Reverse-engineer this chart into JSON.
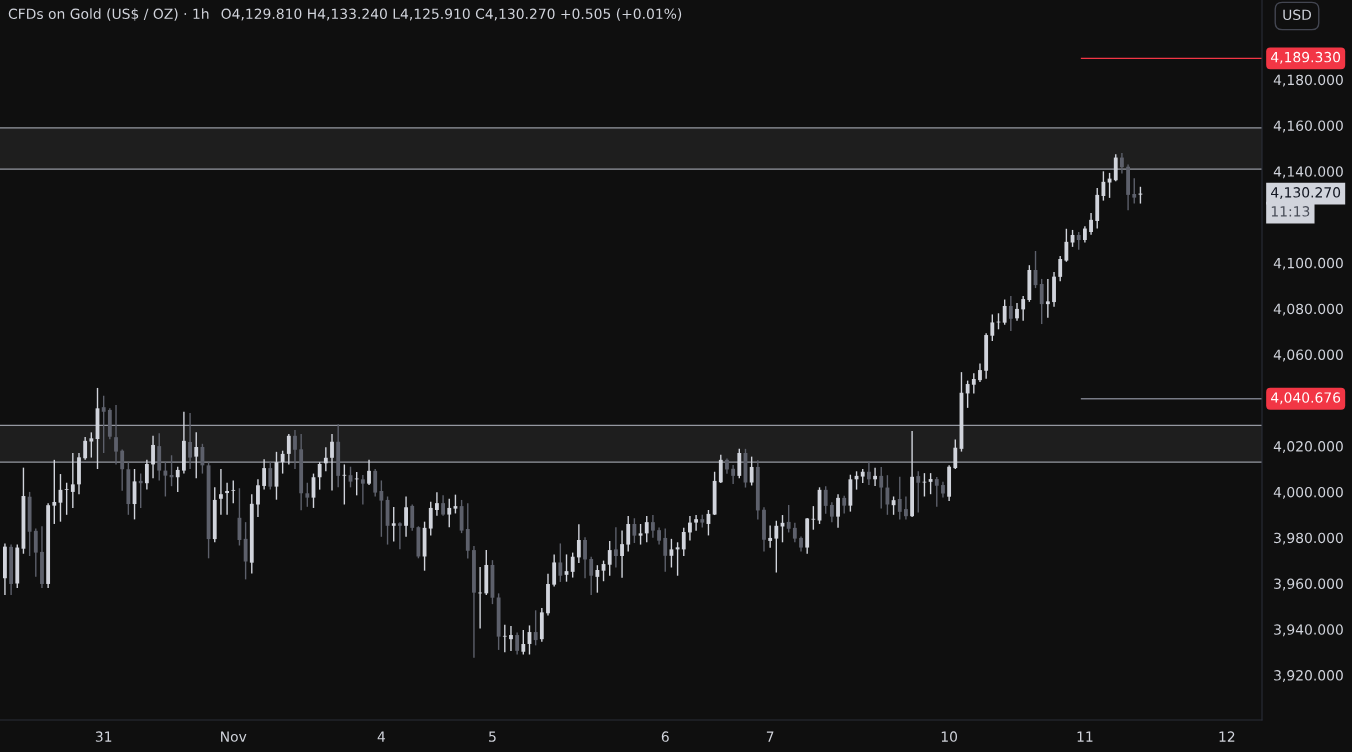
{
  "chart_data": {
    "type": "candlestick",
    "title": "CFDs on Gold (US$ / OZ) · 1h",
    "subtitle": "O4,129.810 H4,133.240 L4,125.910 C4,130.270 +0.505 (+0.01%)",
    "categories": [
      null,
      null,
      null,
      null,
      null,
      null,
      null,
      null,
      null,
      null,
      null,
      null,
      null,
      null,
      null,
      null,
      "31",
      null,
      null,
      null,
      null,
      null,
      null,
      null,
      null,
      null,
      null,
      null,
      null,
      null,
      null,
      null,
      null,
      null,
      null,
      null,
      null,
      "Nov",
      null,
      null,
      null,
      null,
      null,
      null,
      null,
      null,
      null,
      null,
      null,
      null,
      null,
      null,
      null,
      null,
      null,
      null,
      null,
      null,
      null,
      null,
      null,
      "4",
      null,
      null,
      null,
      null,
      null,
      null,
      null,
      null,
      null,
      null,
      null,
      null,
      null,
      null,
      null,
      null,
      null,
      "5",
      null,
      null,
      null,
      null,
      null,
      null,
      null,
      null,
      null,
      null,
      null,
      null,
      null,
      null,
      null,
      null,
      null,
      null,
      null,
      null,
      null,
      null,
      null,
      null,
      null,
      null,
      null,
      "6",
      null,
      null,
      null,
      null,
      null,
      null,
      null,
      null,
      null,
      null,
      null,
      null,
      null,
      null,
      null,
      null,
      "7",
      null,
      null,
      null,
      null,
      null,
      null,
      null,
      null,
      null,
      null,
      null,
      null,
      null,
      null,
      null,
      null,
      null,
      null,
      null,
      null,
      null,
      null,
      null,
      null,
      null,
      null,
      null,
      null,
      "10",
      null,
      null,
      null,
      null,
      null,
      null,
      null,
      null,
      null,
      null,
      null,
      null,
      null,
      null,
      null,
      null,
      null,
      null,
      null,
      null,
      null,
      "11",
      null,
      null,
      null,
      null,
      null,
      null,
      null,
      null,
      null,
      null,
      null,
      null,
      null,
      null,
      null,
      null,
      null,
      null,
      null,
      null,
      null,
      null,
      "12",
      null,
      null,
      null,
      null,
      null
    ],
    "ohlc": [
      [
        3962.3,
        3977.5,
        3955,
        3976.1
      ],
      [
        3976,
        3977,
        3955,
        3959.8
      ],
      [
        3960,
        3977,
        3958,
        3975.7
      ],
      [
        3975.2,
        4010.6,
        3973,
        3998.2
      ],
      [
        3997.9,
        4000,
        3972,
        3982.6
      ],
      [
        3983,
        3984,
        3963,
        3973.5
      ],
      [
        3973.8,
        3985,
        3958,
        3959.8
      ],
      [
        3959.8,
        3995,
        3958,
        3994.2
      ],
      [
        3994,
        4014,
        3986,
        3995.6
      ],
      [
        3995.3,
        4007.8,
        3987,
        4000.9
      ],
      [
        4000.9,
        4004,
        3990,
        4000.9
      ],
      [
        4000,
        4017,
        3993,
        4003.3
      ],
      [
        4003.3,
        4017,
        3999,
        4015.1
      ],
      [
        4014.7,
        4024,
        4014,
        4022.3
      ],
      [
        4022,
        4026,
        4015,
        4023.4
      ],
      [
        4023.1,
        4045.4,
        4010,
        4036.5
      ],
      [
        4037,
        4042,
        4017,
        4035
      ],
      [
        4035.8,
        4036.5,
        4023,
        4024.1
      ],
      [
        4023.9,
        4038,
        4012,
        4017.6
      ],
      [
        4018,
        4018.5,
        4000.5,
        4009.9
      ],
      [
        4009.9,
        4013,
        3990,
        3994.7
      ],
      [
        3994.7,
        4010,
        3988,
        4004.6
      ],
      [
        4004.8,
        4008,
        3993,
        4003.8
      ],
      [
        4003.8,
        4014,
        4001,
        4012.2
      ],
      [
        4012,
        4024.5,
        4006,
        4020.5
      ],
      [
        4020,
        4025.6,
        4005,
        4009.3
      ],
      [
        4009.3,
        4013,
        3998,
        4007.1
      ],
      [
        4007.4,
        4016,
        4002.5,
        4006.4
      ],
      [
        4006.4,
        4011,
        4000,
        4009.6
      ],
      [
        4009.3,
        4035,
        4008,
        4022.3
      ],
      [
        4021.8,
        4034.5,
        4010,
        4015
      ],
      [
        4015.4,
        4026,
        4006,
        4019.6
      ],
      [
        4019.6,
        4021,
        4008,
        4011.6
      ],
      [
        4011.6,
        4013,
        3971,
        3979.4
      ],
      [
        3979.4,
        4002,
        3978,
        3996.5
      ],
      [
        3997,
        4010,
        3990,
        3999
      ],
      [
        3999.5,
        4004,
        3990,
        4000.4
      ],
      [
        4000.5,
        4005,
        3995,
        4000.5
      ],
      [
        3988.7,
        4001.6,
        3976.6,
        3979
      ],
      [
        3979.5,
        3986.8,
        3961.8,
        3969.6
      ],
      [
        3969.1,
        3999,
        3964.4,
        3994.8
      ],
      [
        3994.5,
        4005.5,
        3989,
        4002.9
      ],
      [
        4002.6,
        4014.3,
        4001,
        4010.4
      ],
      [
        4010.4,
        4013,
        4001,
        4002.3
      ],
      [
        4002.3,
        4017.5,
        3996.6,
        4013
      ],
      [
        4013,
        4018,
        4008,
        4016.6
      ],
      [
        4016.6,
        4025.3,
        4012,
        4024.5
      ],
      [
        4024.5,
        4027,
        4010,
        4018.4
      ],
      [
        4018.6,
        4025.3,
        3992,
        3999.4
      ],
      [
        3999.4,
        4004,
        3993.5,
        3997.5
      ],
      [
        3997.5,
        4008,
        3993,
        4006.4
      ],
      [
        4006.4,
        4013,
        4001,
        4012.2
      ],
      [
        4012.5,
        4019.5,
        4009,
        4014.9
      ],
      [
        4014.9,
        4025.3,
        4000.6,
        4021.9
      ],
      [
        4021.9,
        4029.5,
        4002,
        4007
      ],
      [
        4007.1,
        4012,
        3994.5,
        4007.1
      ],
      [
        4007.3,
        4011,
        4002,
        4004.5
      ],
      [
        4005.5,
        4008.7,
        3998.5,
        4005.5
      ],
      [
        4005.5,
        4007.4,
        3994.5,
        4003.6
      ],
      [
        4003.6,
        4014,
        4003,
        4009.2
      ],
      [
        4009.2,
        4010,
        3998,
        3999.7
      ],
      [
        4000.4,
        4005,
        3980.4,
        3996.2
      ],
      [
        3996.5,
        3998,
        3977,
        3985.2
      ],
      [
        3985.2,
        3993.4,
        3978.3,
        3986.3
      ],
      [
        3986.3,
        3986.8,
        3975,
        3985.2
      ],
      [
        3985.2,
        3998,
        3980.4,
        3993.3
      ],
      [
        3993.9,
        3994.5,
        3983,
        3984.3
      ],
      [
        3984.6,
        3985,
        3971,
        3971.8
      ],
      [
        3971.8,
        3987,
        3965.6,
        3984.3
      ],
      [
        3984,
        3995.7,
        3981,
        3993
      ],
      [
        3992.1,
        3999.9,
        3989.6,
        3995.1
      ],
      [
        3995.1,
        3998.5,
        3989.6,
        3990.1
      ],
      [
        3990.1,
        3997,
        3984.6,
        3993
      ],
      [
        3992.7,
        3998.8,
        3990.6,
        3993.8
      ],
      [
        3993.8,
        3996.5,
        3982,
        3983.1
      ],
      [
        3983.8,
        3995,
        3970.9,
        3974.3
      ],
      [
        3974.6,
        3976.4,
        3927.6,
        3956
      ],
      [
        3955.7,
        3967.2,
        3940.4,
        3955.7
      ],
      [
        3955.7,
        3974.6,
        3955,
        3968.1
      ],
      [
        3968.1,
        3970.2,
        3951,
        3953.8
      ],
      [
        3953.9,
        3955.7,
        3931,
        3936.8
      ],
      [
        3936.8,
        3942,
        3930,
        3936.8
      ],
      [
        3935.7,
        3941.5,
        3930.5,
        3937.5
      ],
      [
        3937.5,
        3938.6,
        3929,
        3930.6
      ],
      [
        3930.2,
        3939.7,
        3929,
        3933.6
      ],
      [
        3933.6,
        3941.7,
        3929,
        3938.8
      ],
      [
        3938.8,
        3948.3,
        3933,
        3935.3
      ],
      [
        3935.7,
        3949.3,
        3934.6,
        3947.4
      ],
      [
        3947,
        3964.3,
        3946,
        3959.8
      ],
      [
        3959.5,
        3972.7,
        3958.7,
        3969.2
      ],
      [
        3969.2,
        3977.5,
        3960.7,
        3963.4
      ],
      [
        3963.8,
        3972.7,
        3960.8,
        3965.4
      ],
      [
        3965.1,
        3973.5,
        3962.6,
        3971.7
      ],
      [
        3971.4,
        3985.9,
        3969,
        3979
      ],
      [
        3979,
        3980.2,
        3962.3,
        3970.5
      ],
      [
        3970.7,
        3971.7,
        3955,
        3963.4
      ],
      [
        3962.9,
        3968,
        3956,
        3965.9
      ],
      [
        3965.6,
        3970,
        3961,
        3968.5
      ],
      [
        3968.2,
        3978.6,
        3963.4,
        3974.6
      ],
      [
        3974.9,
        3984.6,
        3967,
        3972
      ],
      [
        3972,
        3983.2,
        3962.5,
        3977.2
      ],
      [
        3977,
        3989.5,
        3974,
        3986
      ],
      [
        3986,
        3988.5,
        3977.7,
        3980.9
      ],
      [
        3980.9,
        3986,
        3977,
        3981.9
      ],
      [
        3981.9,
        3989.5,
        3978,
        3986.8
      ],
      [
        3986.8,
        3989.9,
        3980,
        3983.1
      ],
      [
        3983.3,
        3984.5,
        3977,
        3978.7
      ],
      [
        3979.9,
        3984,
        3965.1,
        3972.1
      ],
      [
        3972.1,
        3979.5,
        3967,
        3974.9
      ],
      [
        3974.9,
        3978,
        3963.4,
        3975.8
      ],
      [
        3974.9,
        3984.3,
        3972,
        3982.5
      ],
      [
        3982.3,
        3989.5,
        3978.8,
        3986.6
      ],
      [
        3986.6,
        3989.9,
        3983,
        3988.1
      ],
      [
        3988.1,
        3990,
        3984.5,
        3986.6
      ],
      [
        3986,
        3992.1,
        3981,
        3990.4
      ],
      [
        3990.1,
        4008.8,
        3989.9,
        4004.8
      ],
      [
        4004.2,
        4016.2,
        4003.9,
        4014
      ],
      [
        4014,
        4014.6,
        4007.9,
        4009.8
      ],
      [
        4010.1,
        4011.8,
        4003.5,
        4007
      ],
      [
        4007,
        4018.8,
        4006,
        4017
      ],
      [
        4017,
        4018.8,
        4001.9,
        4004.1
      ],
      [
        4004.1,
        4015.4,
        4002.8,
        4010.9
      ],
      [
        4010.9,
        4013.8,
        3988,
        3991.9
      ],
      [
        3992.2,
        3993.3,
        3974,
        3979.1
      ],
      [
        3978.6,
        3985.3,
        3975.6,
        3979.9
      ],
      [
        3979.6,
        3987.4,
        3964.8,
        3985.2
      ],
      [
        3984.9,
        3989.9,
        3978,
        3986.5
      ],
      [
        3986.9,
        3994.3,
        3982.3,
        3983.9
      ],
      [
        3984.3,
        3986.5,
        3978,
        3979.6
      ],
      [
        3979.9,
        3980.5,
        3974,
        3975.7
      ],
      [
        3975.7,
        3988.6,
        3973,
        3988.4
      ],
      [
        3987.9,
        3993.8,
        3983.5,
        3987.9
      ],
      [
        3987.5,
        4002,
        3986,
        4000.9
      ],
      [
        4000.9,
        4002.5,
        3990.5,
        3993.9
      ],
      [
        3994.3,
        3995.5,
        3986.8,
        3989.2
      ],
      [
        3989.2,
        3999,
        3984.3,
        3997.4
      ],
      [
        3997.4,
        3998.3,
        3990.6,
        3994
      ],
      [
        3994,
        4007.5,
        3991.4,
        4005.5
      ],
      [
        4005.5,
        4009,
        4001,
        4007
      ],
      [
        4006.7,
        4010,
        4003.9,
        4008.8
      ],
      [
        4008.8,
        4013.3,
        4003,
        4005.5
      ],
      [
        4005.5,
        4010.5,
        4002.6,
        4007
      ],
      [
        4007,
        4010.9,
        3992.8,
        4001.9
      ],
      [
        4001.9,
        4007.3,
        3990,
        3994.5
      ],
      [
        3994.2,
        3998,
        3990,
        3996.4
      ],
      [
        3996.9,
        4006.6,
        3987.9,
        3991.3
      ],
      [
        3992.5,
        3998,
        3988,
        3989.4
      ],
      [
        3989.4,
        4026.6,
        3989,
        4006.6
      ],
      [
        4006.9,
        4009,
        3991,
        4004
      ],
      [
        4004.1,
        4008.2,
        3998,
        4004.1
      ],
      [
        4004.4,
        4008.2,
        3999,
        4005.6
      ],
      [
        4005.6,
        4006.5,
        3993.5,
        4002.7
      ],
      [
        4003,
        4004.4,
        3997.6,
        3999.3
      ],
      [
        3997.9,
        4011.6,
        3996,
        4011
      ],
      [
        4010.4,
        4022.9,
        4010,
        4019.3
      ],
      [
        4018.8,
        4052.3,
        4017.6,
        4043.3
      ],
      [
        4043,
        4048.6,
        4036.7,
        4047.1
      ],
      [
        4046.8,
        4051.8,
        4043,
        4049.3
      ],
      [
        4048.8,
        4056.1,
        4048,
        4053.2
      ],
      [
        4052.9,
        4069.3,
        4049.4,
        4068.5
      ],
      [
        4068.2,
        4077.5,
        4065.9,
        4074
      ],
      [
        4074,
        4078,
        4071,
        4074
      ],
      [
        4073.9,
        4084,
        4073,
        4081.2
      ],
      [
        4081.2,
        4085.6,
        4070.3,
        4075.6
      ],
      [
        4075.8,
        4082.5,
        4074.7,
        4079.9
      ],
      [
        4079.7,
        4085.6,
        4074.7,
        4084.2
      ],
      [
        4083.8,
        4099,
        4083,
        4096.9
      ],
      [
        4096.9,
        4105.2,
        4089,
        4090.3
      ],
      [
        4090.8,
        4093,
        4073.3,
        4082
      ],
      [
        4082,
        4093,
        4076,
        4083.2
      ],
      [
        4082.9,
        4096,
        4080.9,
        4094
      ],
      [
        4093.9,
        4103,
        4092,
        4101.7
      ],
      [
        4101,
        4114.9,
        4100.5,
        4109.2
      ],
      [
        4108.9,
        4114.4,
        4107,
        4112.2
      ],
      [
        4112.2,
        4113.5,
        4105.7,
        4110
      ],
      [
        4110,
        4116,
        4108.9,
        4115
      ],
      [
        4113.5,
        4121.8,
        4112.3,
        4118.8
      ],
      [
        4118.3,
        4132.7,
        4115,
        4129.7
      ],
      [
        4129.2,
        4140,
        4127.2,
        4135.4
      ],
      [
        4135.1,
        4139.3,
        4128.4,
        4136.8
      ],
      [
        4136.1,
        4147.4,
        4135.7,
        4146
      ],
      [
        4146,
        4148,
        4139,
        4141.8
      ],
      [
        4142,
        4143,
        4123,
        4129.7
      ],
      [
        4130.1,
        4137,
        4125.9,
        4128.5
      ],
      [
        4129.81,
        4133.24,
        4125.91,
        4130.27
      ],
      null,
      null,
      null,
      null,
      null,
      null,
      null,
      null,
      null,
      null,
      null,
      null,
      null,
      null,
      null,
      null,
      null,
      null,
      null
    ],
    "ylim": [
      3900.4,
      4214.8
    ],
    "yticks": [
      {
        "value": 3920,
        "label": "3,920.000"
      },
      {
        "value": 3940,
        "label": "3,940.000"
      },
      {
        "value": 3960,
        "label": "3,960.000"
      },
      {
        "value": 3980,
        "label": "3,980.000"
      },
      {
        "value": 4000,
        "label": "4,000.000"
      },
      {
        "value": 4020,
        "label": "4,020.000"
      },
      {
        "value": 4060,
        "label": "4,060.000"
      },
      {
        "value": 4080,
        "label": "4,080.000"
      },
      {
        "value": 4100,
        "label": "4,100.000"
      },
      {
        "value": 4140,
        "label": "4,140.000"
      },
      {
        "value": 4160,
        "label": "4,160.000"
      },
      {
        "value": 4180,
        "label": "4,180.000"
      }
    ],
    "bands": [
      {
        "axis": "y",
        "from": 4013,
        "to": 4029,
        "color": "#1e1e1e"
      },
      {
        "axis": "y",
        "from": 4141,
        "to": 4159,
        "color": "#1e1e1e"
      }
    ],
    "ref_lines": [
      {
        "axis": "y",
        "value": 4189.33,
        "label": "4,189.330",
        "color": "#f23645"
      },
      {
        "axis": "y",
        "value": 4040.676,
        "label": "4,040.676",
        "color": "#787b86"
      }
    ],
    "annotations": [
      "4,130.270",
      "11:13",
      "USD"
    ]
  }
}
